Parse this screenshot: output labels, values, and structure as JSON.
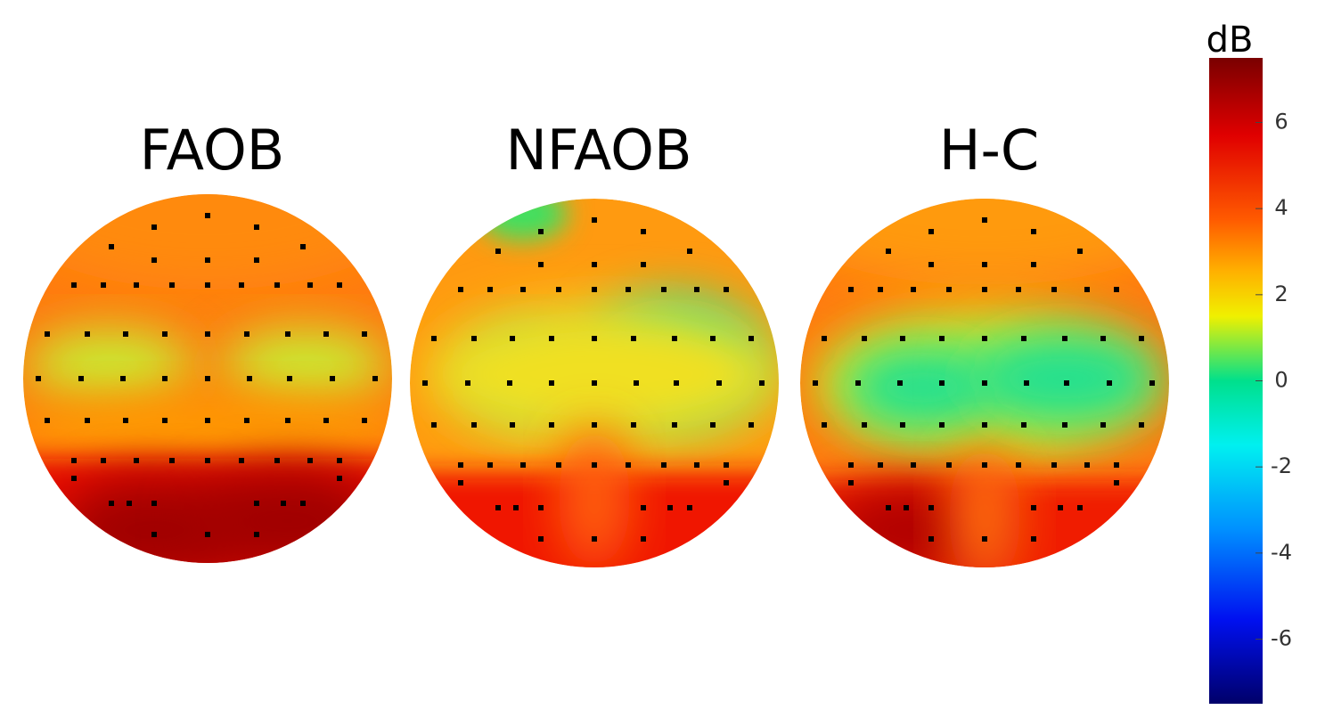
{
  "panels": [
    {
      "title": "FAOB"
    },
    {
      "title": "NFAOB"
    },
    {
      "title": "H-C"
    }
  ],
  "colorbar": {
    "label": "dB",
    "lim": [
      -7.5,
      7.5
    ],
    "ticks": [
      6,
      4,
      2,
      0,
      -2,
      -4,
      -6
    ]
  }
}
